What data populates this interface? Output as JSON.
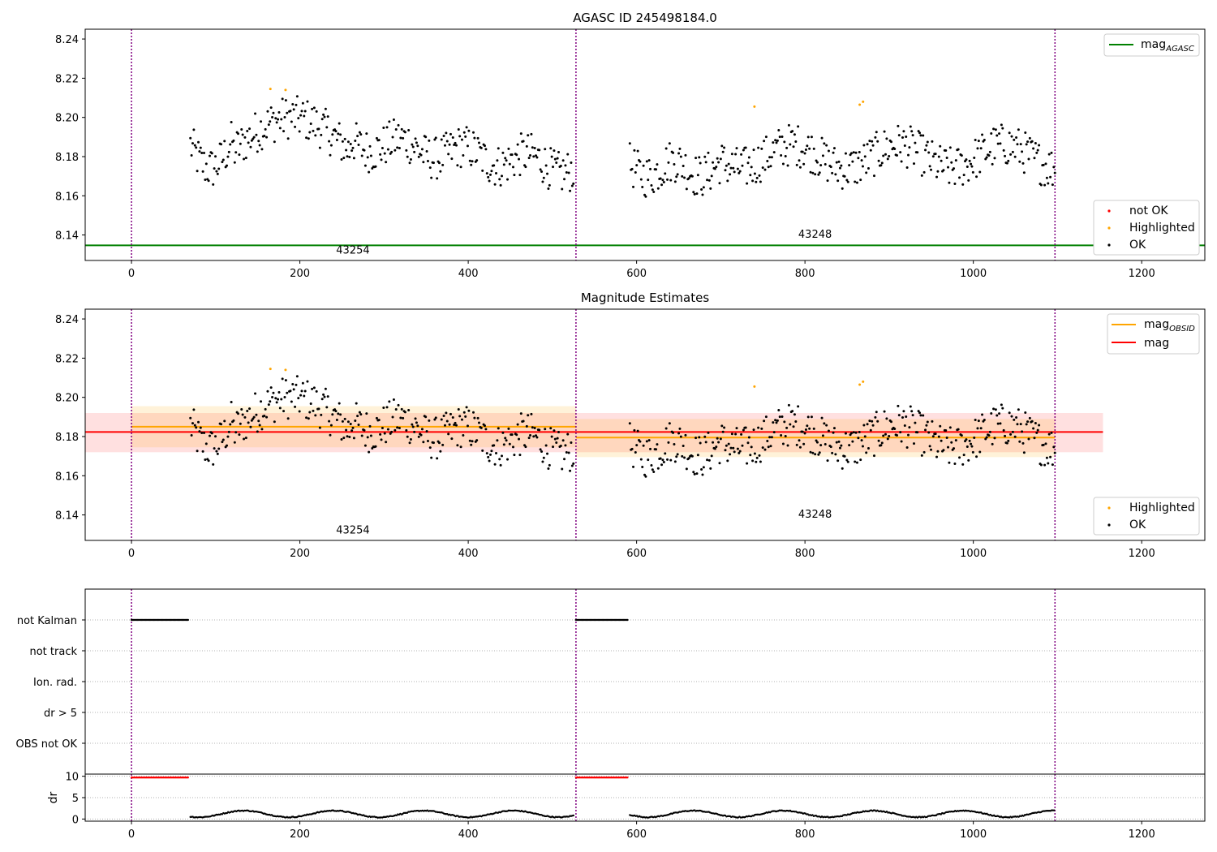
{
  "chart_data": [
    {
      "type": "scatter",
      "title": "AGASC ID 245498184.0",
      "xlim": [
        -55,
        1275
      ],
      "ylim": [
        8.127,
        8.245
      ],
      "x_ticks": [
        0,
        200,
        400,
        600,
        800,
        1000,
        1200
      ],
      "y_ticks": [
        8.14,
        8.16,
        8.18,
        8.2,
        8.22,
        8.24
      ],
      "obsid_boundaries": [
        0,
        528,
        1097
      ],
      "obsid_labels": [
        {
          "text": "43254",
          "x": 263,
          "y": 8.1305
        },
        {
          "text": "43248",
          "x": 812,
          "y": 8.1385
        }
      ],
      "lines": [
        {
          "name": "mag",
          "subscript": "AGASC",
          "color": "#008000",
          "y": 8.1347,
          "x_range": [
            -55,
            1275
          ]
        }
      ],
      "point_series": [
        {
          "name": "not OK",
          "color": "#ff0000"
        },
        {
          "name": "Highlighted",
          "color": "#ffa500"
        },
        {
          "name": "OK",
          "color": "#000000"
        }
      ],
      "legend_lines_position": "top-right",
      "legend_points_position": "bottom-right"
    },
    {
      "type": "scatter",
      "title": "Magnitude Estimates",
      "xlim": [
        -55,
        1275
      ],
      "ylim": [
        8.127,
        8.245
      ],
      "x_ticks": [
        0,
        200,
        400,
        600,
        800,
        1000,
        1200
      ],
      "y_ticks": [
        8.14,
        8.16,
        8.18,
        8.2,
        8.22,
        8.24
      ],
      "obsid_boundaries": [
        0,
        528,
        1097
      ],
      "obsid_labels": [
        {
          "text": "43254",
          "x": 263,
          "y": 8.1305
        },
        {
          "text": "43248",
          "x": 812,
          "y": 8.1385
        }
      ],
      "bands": [
        {
          "color": "#ff0000",
          "opacity": 0.12,
          "x_range": [
            -55,
            1154
          ],
          "y_range": [
            8.172,
            8.192
          ]
        },
        {
          "color": "#ffa500",
          "opacity": 0.15,
          "x_range": [
            0,
            528
          ],
          "y_range": [
            8.1745,
            8.1955
          ]
        },
        {
          "color": "#ffa500",
          "opacity": 0.15,
          "x_range": [
            528,
            1097
          ],
          "y_range": [
            8.1695,
            8.189
          ]
        }
      ],
      "lines": [
        {
          "name": "mag",
          "subscript": "OBSID",
          "color": "#ffa500",
          "segments": [
            {
              "x_range": [
                0,
                528
              ],
              "y": 8.185
            },
            {
              "x_range": [
                528,
                1097
              ],
              "y": 8.1795
            }
          ]
        },
        {
          "name": "mag",
          "subscript": "",
          "color": "#ff0000",
          "segments": [
            {
              "x_range": [
                -55,
                1154
              ],
              "y": 8.1823
            }
          ]
        }
      ],
      "point_series": [
        {
          "name": "Highlighted",
          "color": "#ffa500"
        },
        {
          "name": "OK",
          "color": "#000000"
        }
      ],
      "legend_lines_position": "top-right",
      "legend_points_position": "bottom-right"
    },
    {
      "type": "scatter",
      "title": "",
      "xlim": [
        -55,
        1275
      ],
      "categories": [
        "not Kalman",
        "not track",
        "Ion. rad.",
        "dr > 5",
        "OBS not OK"
      ],
      "flags": [
        {
          "category": "not Kalman",
          "x_ranges": [
            [
              0,
              68
            ],
            [
              528,
              590
            ]
          ]
        }
      ],
      "grid": true
    },
    {
      "type": "scatter",
      "title": "",
      "xlim": [
        -55,
        1275
      ],
      "ylabel": "dr",
      "ylim": [
        -0.5,
        10.5
      ],
      "y_ticks": [
        0,
        5,
        10
      ],
      "x_ticks": [
        0,
        200,
        400,
        600,
        800,
        1000,
        1200
      ],
      "flagged_points": {
        "color": "#ff0000",
        "value": 9.7,
        "x_ranges": [
          [
            0,
            68
          ],
          [
            528,
            590
          ]
        ]
      },
      "ok_points": {
        "color": "#000000",
        "x_ranges": [
          [
            70,
            526
          ],
          [
            592,
            1097
          ]
        ],
        "value_range": [
          0.2,
          2.4
        ]
      },
      "grid": true
    }
  ]
}
